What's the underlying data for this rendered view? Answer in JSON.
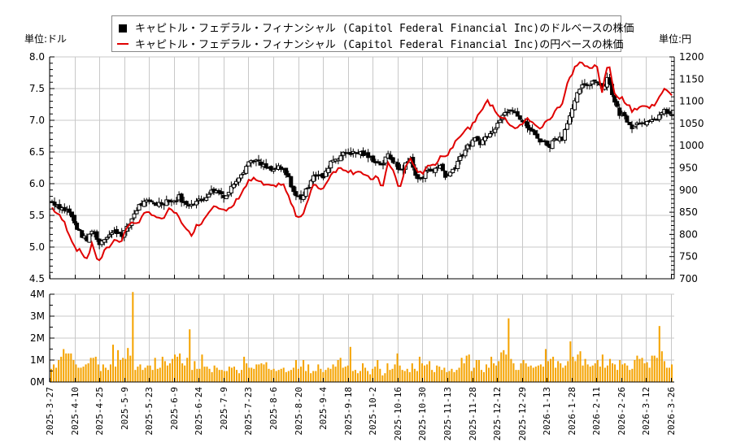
{
  "legend": {
    "usd_label": "キャピトル・フェデラル・フィナンシャル (Capitol Federal Financial Inc)のドルベースの株価",
    "jpy_label": "キャピトル・フェデラル・フィナンシャル (Capitol Federal Financial Inc)の円ベースの株価"
  },
  "units": {
    "left": "単位:ドル",
    "right": "単位:円"
  },
  "colors": {
    "candle": "#000000",
    "yen_line": "#e00000",
    "volume": "#f5a300",
    "grid": "#c8c8c8"
  },
  "chart_data": {
    "type": "candlestick+line+bar",
    "title": "キャピトル・フェデラル・フィナンシャル (Capitol Federal Financial Inc)",
    "left_axis": {
      "label": "単位:ドル",
      "ylim": [
        4.5,
        8.0
      ],
      "ticks": [
        "4.5",
        "5.0",
        "5.5",
        "6.0",
        "6.5",
        "7.0",
        "7.5",
        "8.0"
      ]
    },
    "right_axis": {
      "label": "単位:円",
      "ylim": [
        700,
        1200
      ],
      "ticks": [
        "700",
        "750",
        "800",
        "850",
        "900",
        "950",
        "1000",
        "1050",
        "1100",
        "1150",
        "1200"
      ]
    },
    "volume_axis": {
      "ylim": [
        0,
        4000000
      ],
      "ticks": [
        "0M",
        "1M",
        "2M",
        "3M",
        "4M"
      ]
    },
    "x_ticks": [
      "2025-3-27",
      "2025-4-10",
      "2025-4-25",
      "2025-5-9",
      "2025-5-23",
      "2025-6-9",
      "2025-6-24",
      "2025-7-9",
      "2025-7-23",
      "2025-8-6",
      "2025-8-20",
      "2025-9-4",
      "2025-9-18",
      "2025-10-2",
      "2025-10-16",
      "2025-10-30",
      "2025-11-13",
      "2025-11-28",
      "2025-12-12",
      "2025-12-29",
      "2026-1-13",
      "2026-1-28",
      "2026-2-11",
      "2026-2-26",
      "2026-3-12",
      "2026-3-26"
    ],
    "usd_close_keyframes": [
      5.72,
      5.65,
      5.6,
      5.55,
      5.35,
      5.2,
      5.1,
      5.3,
      5.05,
      5.15,
      5.2,
      5.25,
      5.2,
      5.3,
      5.5,
      5.65,
      5.7,
      5.72,
      5.68,
      5.7,
      5.75,
      5.72,
      5.8,
      5.65,
      5.7,
      5.72,
      5.75,
      5.85,
      5.9,
      5.85,
      5.8,
      5.95,
      6.1,
      6.2,
      6.35,
      6.38,
      6.3,
      6.25,
      6.2,
      6.25,
      6.2,
      6.05,
      5.8,
      5.78,
      5.9,
      6.15,
      6.12,
      6.1,
      6.35,
      6.4,
      6.45,
      6.5,
      6.48,
      6.5,
      6.45,
      6.4,
      6.35,
      6.3,
      6.45,
      6.35,
      6.2,
      6.3,
      6.4,
      6.05,
      6.1,
      6.25,
      6.2,
      6.3,
      6.1,
      6.2,
      6.35,
      6.5,
      6.6,
      6.7,
      6.65,
      6.75,
      6.8,
      7.0,
      7.1,
      7.2,
      7.15,
      7.0,
      6.9,
      6.8,
      6.7,
      6.65,
      6.6,
      6.75,
      6.7,
      7.0,
      7.2,
      7.5,
      7.55,
      7.6,
      7.65,
      7.5,
      7.7,
      7.3,
      7.1,
      7.05,
      6.9,
      6.95,
      7.0,
      6.95,
      7.0,
      7.1,
      7.15,
      7.05
    ],
    "yen_close_keyframes": [
      860,
      845,
      830,
      800,
      770,
      760,
      745,
      780,
      735,
      760,
      775,
      790,
      785,
      820,
      825,
      830,
      845,
      850,
      840,
      830,
      855,
      850,
      840,
      810,
      800,
      820,
      830,
      850,
      870,
      860,
      850,
      860,
      880,
      900,
      920,
      925,
      915,
      910,
      905,
      915,
      910,
      880,
      845,
      840,
      870,
      910,
      905,
      905,
      935,
      945,
      950,
      945,
      940,
      945,
      930,
      925,
      930,
      905,
      960,
      940,
      900,
      950,
      975,
      935,
      940,
      960,
      950,
      980,
      975,
      995,
      1020,
      1030,
      1040,
      1050,
      1080,
      1100,
      1090,
      1070,
      1060,
      1050,
      1040,
      1045,
      1060,
      1055,
      1035,
      1050,
      1060,
      1085,
      1090,
      1140,
      1170,
      1190,
      1180,
      1170,
      1185,
      1120,
      1190,
      1120,
      1110,
      1100,
      1080,
      1085,
      1090,
      1085,
      1095,
      1110,
      1130,
      1115
    ],
    "volume_sample_M": [
      0.6,
      0.8,
      0.65,
      1.0,
      1.15,
      1.5,
      1.3,
      1.3,
      1.3,
      1.0,
      0.8,
      0.65,
      0.65,
      0.7,
      0.8,
      0.85,
      1.1,
      1.1,
      1.15,
      0.8,
      0.5,
      0.8,
      0.65,
      0.55,
      0.8,
      1.7,
      0.7,
      1.45,
      1.0,
      1.1,
      1.05,
      1.55,
      1.2,
      4.1,
      0.55,
      0.7,
      0.8,
      0.55,
      0.65,
      0.75,
      0.75,
      0.55,
      1.1,
      0.6,
      0.65,
      1.15,
      0.95,
      0.75,
      0.85,
      1.05,
      1.25,
      1.15,
      1.3,
      0.85,
      0.75,
      1.1,
      2.4,
      0.55,
      0.95,
      0.6,
      0.6,
      1.25,
      0.7,
      0.7,
      0.6,
      0.45,
      0.75,
      0.65,
      0.55,
      0.55,
      0.5,
      0.5,
      0.7,
      0.65,
      0.7,
      0.55,
      0.4,
      0.55,
      1.15,
      0.85,
      0.65,
      0.65,
      0.6,
      0.8,
      0.8,
      0.85,
      0.8,
      0.9,
      0.6,
      0.55,
      0.6,
      0.5,
      0.55,
      0.6,
      0.65,
      0.45,
      0.5,
      0.55,
      0.65,
      1.0,
      0.6,
      0.7,
      1.0,
      0.5,
      0.8,
      0.4,
      0.5,
      0.5,
      0.8,
      0.6,
      0.45,
      0.55,
      0.65,
      0.6,
      0.8,
      0.7,
      1.0,
      1.1,
      0.65,
      0.7,
      0.75,
      1.6,
      0.5,
      0.55,
      0.4,
      0.5,
      0.85,
      0.65,
      0.5,
      0.35,
      0.6,
      0.7,
      1.0,
      0.6,
      0.3,
      0.4,
      0.85,
      0.55,
      0.6,
      0.8,
      1.3,
      0.75,
      0.55,
      0.5,
      0.6,
      0.45,
      0.85,
      0.6,
      0.5,
      1.15,
      0.85,
      0.75,
      0.8,
      0.95,
      0.55,
      0.45,
      0.75,
      0.7,
      0.55,
      0.65,
      0.45,
      0.5,
      0.6,
      0.45,
      0.55,
      0.65,
      1.1,
      0.85,
      1.2,
      1.25,
      0.5,
      0.65,
      1.0,
      1.0,
      0.55,
      0.45,
      0.8,
      0.65,
      1.15,
      0.85,
      0.75,
      0.95,
      1.35,
      1.45,
      1.25,
      2.9,
      1.05,
      0.85,
      0.55,
      0.55,
      0.85,
      1.0,
      0.85,
      0.7,
      0.75,
      0.65,
      0.7,
      0.75,
      0.8,
      0.7,
      1.5,
      0.95,
      1.05,
      1.15,
      0.65,
      0.95,
      0.85,
      0.65,
      0.75,
      0.95,
      1.85,
      1.15,
      0.95,
      1.25,
      1.4,
      0.75,
      1.05,
      0.8,
      0.7,
      0.75,
      0.85,
      1.0,
      0.7,
      1.25,
      0.65,
      0.75,
      1.05,
      0.85,
      0.8,
      0.55,
      1.0,
      0.8,
      0.85,
      0.75,
      0.55,
      0.6,
      1.0,
      1.2,
      1.05,
      1.1,
      0.85,
      0.9,
      0.65,
      1.2,
      1.2,
      1.1,
      2.55,
      1.4,
      0.95,
      0.65,
      0.65,
      0.8
    ]
  }
}
